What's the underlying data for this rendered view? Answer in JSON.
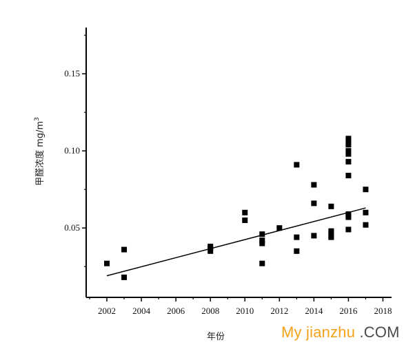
{
  "chart_data": {
    "type": "scatter",
    "xlabel": "年份",
    "ylabel": "甲醛浓度 mg/m",
    "ylabel_superscript": "3",
    "xlim": [
      2000.8,
      2018.5
    ],
    "ylim": [
      0.005,
      0.18
    ],
    "xticks": [
      "2002",
      "2004",
      "2006",
      "2008",
      "2010",
      "2012",
      "2014",
      "2016",
      "2018"
    ],
    "yticks": [
      "0.05",
      "0.10",
      "0.15"
    ],
    "x": [
      2002,
      2003,
      2003,
      2008,
      2008,
      2008,
      2010,
      2010,
      2011,
      2011,
      2011,
      2011,
      2012,
      2013,
      2013,
      2013,
      2014,
      2014,
      2014,
      2015,
      2015,
      2015,
      2015,
      2015,
      2016,
      2016,
      2016,
      2016,
      2016,
      2016,
      2016,
      2016,
      2016,
      2016,
      2016,
      2017,
      2017,
      2017
    ],
    "y": [
      0.027,
      0.036,
      0.018,
      0.038,
      0.037,
      0.035,
      0.06,
      0.055,
      0.046,
      0.042,
      0.04,
      0.027,
      0.05,
      0.091,
      0.044,
      0.035,
      0.078,
      0.066,
      0.045,
      0.064,
      0.048,
      0.047,
      0.045,
      0.044,
      0.108,
      0.106,
      0.104,
      0.1,
      0.098,
      0.093,
      0.084,
      0.059,
      0.058,
      0.057,
      0.049,
      0.075,
      0.06,
      0.052
    ],
    "trendline": {
      "x": [
        2002,
        2017
      ],
      "y": [
        0.019,
        0.063
      ]
    },
    "grid": false,
    "legend": "none"
  },
  "watermark": {
    "main": "My jianzhu",
    "suffix": ".COM"
  }
}
